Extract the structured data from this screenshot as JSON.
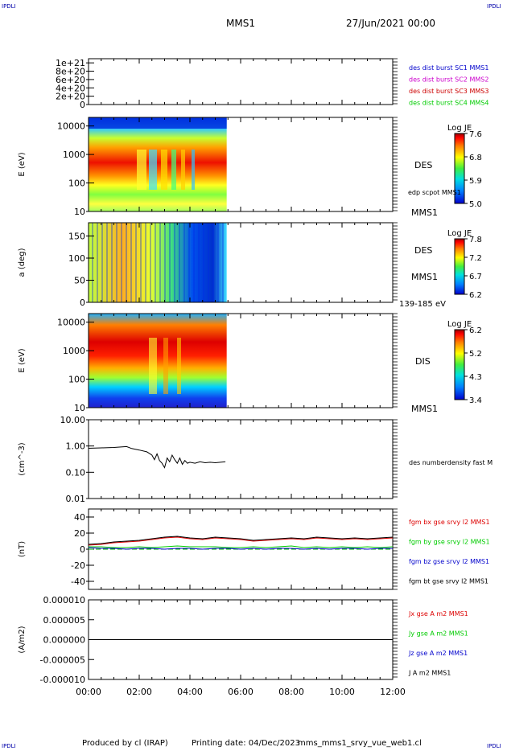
{
  "header": {
    "corner_label": "IPDLI",
    "mission": "MMS1",
    "date": "27/Jun/2021 00:00"
  },
  "footer": {
    "produced_by": "Produced by cl (IRAP)",
    "printing_date": "Printing date: 04/Dec/2023",
    "file_name": "mms_mms1_srvy_vue_web1.cl"
  },
  "colors": {
    "bx": "#dd0000",
    "by": "#00cc00",
    "bz": "#0000cc",
    "bt": "#000000",
    "dist1": "#0000cc",
    "dist2": "#cc00cc",
    "dist3": "#cc0000",
    "dist4": "#00cc00"
  },
  "chart_data": [
    {
      "type": "line",
      "panel": "dist-burst",
      "ylim": [
        0,
        1.1e+21
      ],
      "yticks": [
        "1e+21",
        "8e+20",
        "6e+20",
        "4e+20",
        "2e+20",
        "0"
      ],
      "series": [
        {
          "name": "des dist burst SC1 MMS1",
          "color": "#0000cc",
          "values": [
            0,
            0
          ]
        },
        {
          "name": "des dist burst SC2 MMS2",
          "color": "#cc00cc",
          "values": [
            0,
            0
          ]
        },
        {
          "name": "des dist burst SC3 MMS3",
          "color": "#cc0000",
          "values": [
            0,
            0
          ]
        },
        {
          "name": "des dist burst SC4 MMS4",
          "color": "#00cc00",
          "values": [
            0,
            0
          ]
        }
      ]
    },
    {
      "type": "heatmap",
      "panel": "des-energy",
      "ylabel": "E (eV)",
      "yscale": "log",
      "ylim": [
        10,
        20000
      ],
      "yticks": [
        "10000",
        "1000",
        "100",
        "10"
      ],
      "data_end_hour": 5.45,
      "labels": [
        "DES",
        "edp scpot MMS1",
        "MMS1"
      ],
      "colorbar": {
        "title": "Log JE",
        "ticks": [
          "7.6",
          "6.8",
          "5.9",
          "5.0"
        ]
      }
    },
    {
      "type": "heatmap",
      "panel": "des-pitch",
      "ylabel": "a (deg)",
      "ylim": [
        0,
        180
      ],
      "yticks": [
        "150",
        "100",
        "50",
        "0"
      ],
      "data_end_hour": 5.45,
      "labels": [
        "DES",
        "MMS1",
        "139-185 eV"
      ],
      "colorbar": {
        "title": "Log JE",
        "ticks": [
          "7.8",
          "7.2",
          "6.7",
          "6.2"
        ]
      }
    },
    {
      "type": "heatmap",
      "panel": "dis-energy",
      "ylabel": "E (eV)",
      "yscale": "log",
      "ylim": [
        10,
        20000
      ],
      "yticks": [
        "10000",
        "1000",
        "100",
        "10"
      ],
      "data_end_hour": 5.45,
      "labels": [
        "DIS",
        "MMS1"
      ],
      "colorbar": {
        "title": "Log JE",
        "ticks": [
          "6.2",
          "5.2",
          "4.3",
          "3.4"
        ]
      }
    },
    {
      "type": "line",
      "panel": "density",
      "ylabel": "(cm^-3)",
      "yscale": "log",
      "ylim": [
        0.01,
        10
      ],
      "yticks": [
        "10.00",
        "1.00",
        "0.10",
        "0.01"
      ],
      "series": [
        {
          "name": "des numberdensity fast M",
          "x": [
            0.0,
            0.5,
            1.0,
            1.5,
            1.7,
            2.0,
            2.3,
            2.5,
            2.6,
            2.7,
            2.8,
            2.9,
            3.0,
            3.1,
            3.2,
            3.3,
            3.4,
            3.5,
            3.6,
            3.7,
            3.8,
            3.9,
            4.0,
            4.2,
            4.4,
            4.6,
            4.8,
            5.0,
            5.2,
            5.4
          ],
          "values": [
            0.82,
            0.85,
            0.88,
            0.95,
            0.8,
            0.7,
            0.6,
            0.45,
            0.3,
            0.5,
            0.28,
            0.22,
            0.15,
            0.35,
            0.25,
            0.45,
            0.3,
            0.22,
            0.35,
            0.2,
            0.28,
            0.22,
            0.24,
            0.22,
            0.25,
            0.23,
            0.24,
            0.23,
            0.24,
            0.25
          ]
        }
      ]
    },
    {
      "type": "line",
      "panel": "fgm",
      "ylabel": "(nT)",
      "ylim": [
        -50,
        50
      ],
      "yticks": [
        "40",
        "20",
        "0",
        "-20",
        "-40"
      ],
      "x": [
        0,
        0.5,
        1,
        1.5,
        2,
        2.5,
        3,
        3.5,
        4,
        4.5,
        5,
        5.5,
        6,
        6.5,
        7,
        7.5,
        8,
        8.5,
        9,
        9.5,
        10,
        10.5,
        11,
        11.5,
        12
      ],
      "series": [
        {
          "name": "fgm bx gse srvy l2 MMS1",
          "color": "#dd0000",
          "values": [
            5,
            6,
            8,
            9,
            10,
            12,
            14,
            15,
            13,
            12,
            14,
            13,
            12,
            10,
            11,
            12,
            13,
            12,
            14,
            13,
            12,
            13,
            12,
            13,
            14
          ]
        },
        {
          "name": "fgm by gse srvy l2 MMS1",
          "color": "#00cc00",
          "values": [
            3,
            3,
            2,
            2,
            3,
            2,
            3,
            4,
            3,
            3,
            3,
            2,
            2,
            3,
            2,
            3,
            4,
            2,
            3,
            2,
            3,
            2,
            3,
            2,
            3
          ]
        },
        {
          "name": "fgm bz gse srvy l2 MMS1",
          "color": "#0000cc",
          "values": [
            2,
            1,
            1,
            0,
            1,
            1,
            0,
            1,
            1,
            0,
            1,
            1,
            0,
            1,
            0,
            1,
            1,
            0,
            1,
            0,
            1,
            1,
            0,
            1,
            1
          ]
        },
        {
          "name": "fgm bt gse srvy l2 MMS1",
          "color": "#000000",
          "values": [
            6,
            7,
            9,
            10,
            11,
            13,
            15,
            16,
            14,
            13,
            15,
            14,
            13,
            11,
            12,
            13,
            14,
            13,
            15,
            14,
            13,
            14,
            13,
            14,
            15
          ]
        }
      ]
    },
    {
      "type": "line",
      "panel": "current",
      "ylabel": "(A/m2)",
      "ylim": [
        -1e-05,
        1e-05
      ],
      "yticks": [
        "0.000010",
        "0.000005",
        "0.000000",
        "-0.000005",
        "-0.000010"
      ],
      "xlabel": "",
      "xticks": [
        "00:00",
        "02:00",
        "04:00",
        "06:00",
        "08:00",
        "10:00",
        "12:00"
      ],
      "series": [
        {
          "name": "Jx gse A m2 MMS1",
          "color": "#dd0000",
          "values": [
            0,
            0
          ]
        },
        {
          "name": "Jy gse A m2 MMS1",
          "color": "#00cc00",
          "values": [
            0,
            0
          ]
        },
        {
          "name": "Jz gse A m2 MMS1",
          "color": "#0000cc",
          "values": [
            0,
            0
          ]
        },
        {
          "name": "J A m2 MMS1",
          "color": "#000000",
          "values": [
            0,
            0
          ]
        }
      ]
    }
  ]
}
